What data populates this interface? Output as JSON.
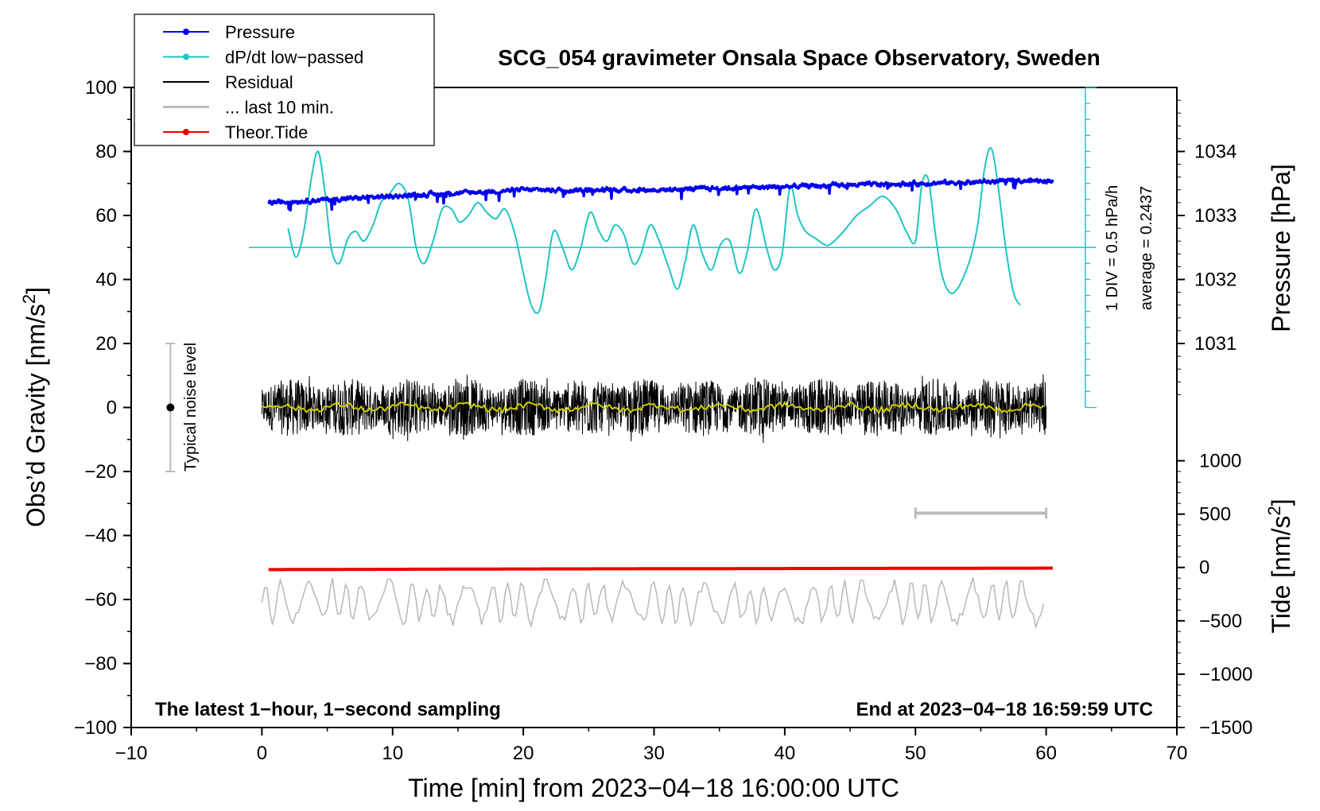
{
  "chart_data": {
    "type": "line",
    "title": "SCG_054 gravimeter Onsala Space Observatory, Sweden",
    "xlabel": "Time [min] from 2023−04−18 16:00:00 UTC",
    "ylabel_left": "Obs’d Gravity [nm/s²]",
    "ylabel_left_main": "Obs’d Gravity [nm/s",
    "ylabel_left_sup": "2",
    "ylabel_left_end": "]",
    "ylabel_right_top": "Pressure [hPa]",
    "ylabel_right_bottom": "Tide [nm/s²]",
    "ylabel_right_bottom_main": "Tide [nm/s",
    "ylabel_right_bottom_sup": "2",
    "ylabel_right_bottom_end": "]",
    "xlim": [
      -10,
      70
    ],
    "ylim": [
      -100,
      100
    ],
    "x_ticks": [
      -10,
      0,
      10,
      20,
      30,
      40,
      50,
      60,
      70
    ],
    "x_tick_labels": [
      "−10",
      "0",
      "10",
      "20",
      "30",
      "40",
      "50",
      "60",
      "70"
    ],
    "y_ticks": [
      -100,
      -80,
      -60,
      -40,
      -20,
      0,
      20,
      40,
      60,
      80,
      100
    ],
    "y_tick_labels": [
      "−100",
      "−80",
      "−60",
      "−40",
      "−20",
      "0",
      "20",
      "40",
      "60",
      "80",
      "100"
    ],
    "pressure_axis": {
      "ticks": [
        1031,
        1032,
        1033,
        1034
      ],
      "tick_labels": [
        "1031",
        "1032",
        "1033",
        "1034"
      ],
      "gravity_at_1031": 20,
      "gravity_per_hPa": 20
    },
    "tide_axis": {
      "ticks": [
        -1500,
        -1000,
        -500,
        0,
        500,
        1000
      ],
      "tick_labels": [
        "−1500",
        "−1000",
        "−500",
        "0",
        "500",
        "1000"
      ],
      "gravity_at_minus1500": -100,
      "gravity_per_500": 16.67
    },
    "legend": {
      "placement": "top-left",
      "entries": [
        {
          "label": "Pressure",
          "color": "#0000ee",
          "marker": true
        },
        {
          "label": "dP/dt low−passed",
          "color": "#22c4c4",
          "marker": true
        },
        {
          "label": "Residual",
          "color": "#000000",
          "marker": false
        },
        {
          "label": "... last 10 min.",
          "color": "#bbbbbb",
          "marker": false
        },
        {
          "label": "Theor.Tide",
          "color": "#ee0000",
          "marker": true
        }
      ]
    },
    "annotations": {
      "noise_label": "Typical noise level",
      "noise_range": [
        -20,
        20
      ],
      "noise_x": -7,
      "dpdt_scale": "1 DIV = 0.5 hPa/h",
      "dpdt_average": "average = 0.2437",
      "dpdt_baseline": 50,
      "scale_bar_x": 63,
      "scale_bar_range": [
        0,
        100
      ],
      "last10_bar": {
        "x0": 50,
        "x1": 60,
        "y": -33
      },
      "bottom_left": "The latest 1−hour, 1−second sampling",
      "bottom_right": "End at 2023−04−18 16:59:59 UTC"
    },
    "series": [
      {
        "name": "Pressure",
        "color": "#0000ee",
        "unit": "hPa",
        "x": [
          0.5,
          10,
          20,
          30,
          40,
          50,
          60.5
        ],
        "values": [
          1033.2,
          1033.3,
          1033.4,
          1033.4,
          1033.45,
          1033.5,
          1033.55
        ]
      },
      {
        "name": "dP/dt low−passed",
        "color": "#22c4c4",
        "x": [
          2,
          2.6,
          3.2,
          3.8,
          4.3,
          4.8,
          5.3,
          5.9,
          6.6,
          7.2,
          7.8,
          8.5,
          9.1,
          9.8,
          10.5,
          11.2,
          11.8,
          12.4,
          13.1,
          13.8,
          14.5,
          15.1,
          15.8,
          16.5,
          17.2,
          17.9,
          18.6,
          19.3,
          20,
          20.6,
          21.2,
          21.7,
          22.3,
          23,
          23.7,
          24.4,
          25.1,
          25.8,
          26.4,
          27,
          27.7,
          28.4,
          29,
          29.7,
          30.4,
          31.1,
          31.8,
          32.4,
          33,
          33.7,
          34.4,
          35.1,
          35.8,
          36.5,
          37.1,
          37.8,
          38.6,
          39.2,
          39.8,
          40.4,
          41,
          41.6,
          42.3,
          43,
          43.5,
          44.5,
          45.5,
          46.5,
          47.5,
          48.5,
          49.3,
          50,
          50.5,
          51,
          51.5,
          52,
          52.6,
          53.2,
          53.8,
          54.3,
          54.8,
          55.3,
          55.8,
          56.3,
          56.9,
          57.5,
          58
        ],
        "values": [
          56,
          47,
          55,
          72,
          80,
          68,
          50,
          45,
          53,
          55,
          52,
          57,
          64,
          67,
          70,
          65,
          50,
          45,
          52,
          62,
          62,
          58,
          60,
          64,
          61,
          59,
          62,
          55,
          42,
          32,
          30,
          40,
          55,
          50,
          43,
          50,
          61,
          55,
          52,
          57,
          54,
          45,
          48,
          57,
          52,
          44,
          37,
          46,
          57,
          48,
          43,
          51,
          52,
          42,
          48,
          62,
          50,
          43,
          48,
          69,
          60,
          55,
          53,
          51,
          51,
          55,
          60,
          63,
          66,
          62,
          55,
          52,
          70,
          71,
          55,
          42,
          36,
          37,
          42,
          48,
          58,
          75,
          81,
          70,
          50,
          36,
          32
        ]
      },
      {
        "name": "Residual",
        "color": "#000000",
        "x": [
          0,
          60
        ],
        "values": [
          0,
          0
        ],
        "amplitude": 10
      },
      {
        "name": "Residual smoothed",
        "color": "#cccc00",
        "x": [
          0,
          60
        ],
        "values": [
          0,
          0
        ]
      },
      {
        "name": "... last 10 min.",
        "color": "#bbbbbb",
        "x": [
          0,
          60
        ],
        "values": [
          -61,
          -61
        ],
        "amplitude": 8
      },
      {
        "name": "Theor.Tide",
        "color": "#ee0000",
        "unit": "nm/s²",
        "x": [
          0.5,
          10,
          20,
          30,
          40,
          50,
          60.5
        ],
        "values": [
          -20,
          -17,
          -14,
          -12,
          -10,
          -8,
          -6
        ]
      }
    ]
  }
}
